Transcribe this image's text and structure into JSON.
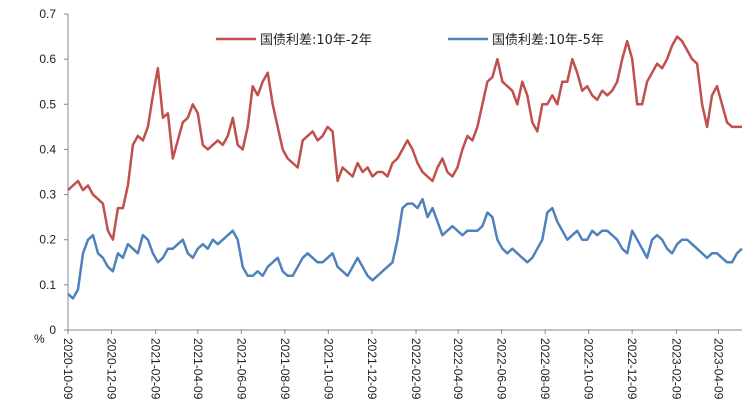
{
  "chart_data": {
    "type": "line",
    "title": "",
    "xlabel": "",
    "ylabel": "%",
    "ylim": [
      0,
      0.7
    ],
    "y_ticks": [
      "0",
      "0.1",
      "0.2",
      "0.3",
      "0.4",
      "0.5",
      "0.6",
      "0.7"
    ],
    "x_ticks": [
      "2020-10-09",
      "2020-12-09",
      "2021-02-09",
      "2021-04-09",
      "2021-06-09",
      "2021-08-09",
      "2021-10-09",
      "2021-12-09",
      "2022-02-09",
      "2022-04-09",
      "2022-06-09",
      "2022-08-09",
      "2022-10-09",
      "2022-12-09",
      "2023-02-09",
      "2023-04-09"
    ],
    "grid": false,
    "legend_position": "top-center",
    "series": [
      {
        "name": "国债利差:10年-2年",
        "color": "#C0504D",
        "x": [
          "2020-10-09",
          "2020-10-16",
          "2020-10-23",
          "2020-10-30",
          "2020-11-06",
          "2020-11-13",
          "2020-11-20",
          "2020-11-27",
          "2020-12-04",
          "2020-12-11",
          "2020-12-18",
          "2020-12-25",
          "2021-01-01",
          "2021-01-08",
          "2021-01-15",
          "2021-01-22",
          "2021-01-29",
          "2021-02-05",
          "2021-02-12",
          "2021-02-19",
          "2021-02-26",
          "2021-03-05",
          "2021-03-12",
          "2021-03-19",
          "2021-03-26",
          "2021-04-02",
          "2021-04-09",
          "2021-04-16",
          "2021-04-23",
          "2021-04-30",
          "2021-05-07",
          "2021-05-14",
          "2021-05-21",
          "2021-05-28",
          "2021-06-04",
          "2021-06-11",
          "2021-06-18",
          "2021-06-25",
          "2021-07-02",
          "2021-07-09",
          "2021-07-16",
          "2021-07-23",
          "2021-07-30",
          "2021-08-06",
          "2021-08-13",
          "2021-08-20",
          "2021-08-27",
          "2021-09-03",
          "2021-09-10",
          "2021-09-17",
          "2021-09-24",
          "2021-10-01",
          "2021-10-08",
          "2021-10-15",
          "2021-10-22",
          "2021-10-29",
          "2021-11-05",
          "2021-11-12",
          "2021-11-19",
          "2021-11-26",
          "2021-12-03",
          "2021-12-10",
          "2021-12-17",
          "2021-12-24",
          "2021-12-31",
          "2022-01-07",
          "2022-01-14",
          "2022-01-21",
          "2022-01-28",
          "2022-02-04",
          "2022-02-11",
          "2022-02-18",
          "2022-02-25",
          "2022-03-04",
          "2022-03-11",
          "2022-03-18",
          "2022-03-25",
          "2022-04-01",
          "2022-04-08",
          "2022-04-15",
          "2022-04-22",
          "2022-04-29",
          "2022-05-06",
          "2022-05-13",
          "2022-05-20",
          "2022-05-27",
          "2022-06-03",
          "2022-06-10",
          "2022-06-17",
          "2022-06-24",
          "2022-07-01",
          "2022-07-08",
          "2022-07-15",
          "2022-07-22",
          "2022-07-29",
          "2022-08-05",
          "2022-08-12",
          "2022-08-19",
          "2022-08-26",
          "2022-09-02",
          "2022-09-09",
          "2022-09-16",
          "2022-09-23",
          "2022-09-30",
          "2022-10-07",
          "2022-10-14",
          "2022-10-21",
          "2022-10-28",
          "2022-11-04",
          "2022-11-11",
          "2022-11-18",
          "2022-11-25",
          "2022-12-02",
          "2022-12-09",
          "2022-12-16",
          "2022-12-23",
          "2022-12-30",
          "2023-01-06",
          "2023-01-13",
          "2023-01-20",
          "2023-01-27",
          "2023-02-03",
          "2023-02-10",
          "2023-02-17",
          "2023-02-24",
          "2023-03-03",
          "2023-03-10",
          "2023-03-17",
          "2023-03-24",
          "2023-03-31",
          "2023-04-07",
          "2023-04-14",
          "2023-04-21",
          "2023-04-28",
          "2023-05-05",
          "2023-05-12"
        ],
        "values": [
          0.31,
          0.32,
          0.33,
          0.31,
          0.32,
          0.3,
          0.29,
          0.28,
          0.22,
          0.2,
          0.27,
          0.27,
          0.32,
          0.41,
          0.43,
          0.42,
          0.45,
          0.52,
          0.58,
          0.47,
          0.48,
          0.38,
          0.42,
          0.46,
          0.47,
          0.5,
          0.48,
          0.41,
          0.4,
          0.41,
          0.42,
          0.41,
          0.43,
          0.47,
          0.41,
          0.4,
          0.45,
          0.54,
          0.52,
          0.55,
          0.57,
          0.5,
          0.45,
          0.4,
          0.38,
          0.37,
          0.36,
          0.42,
          0.43,
          0.44,
          0.42,
          0.43,
          0.45,
          0.44,
          0.33,
          0.36,
          0.35,
          0.34,
          0.37,
          0.35,
          0.36,
          0.34,
          0.35,
          0.35,
          0.34,
          0.37,
          0.38,
          0.4,
          0.42,
          0.4,
          0.37,
          0.35,
          0.34,
          0.33,
          0.36,
          0.38,
          0.35,
          0.34,
          0.36,
          0.4,
          0.43,
          0.42,
          0.45,
          0.5,
          0.55,
          0.56,
          0.6,
          0.55,
          0.54,
          0.53,
          0.5,
          0.55,
          0.52,
          0.46,
          0.44,
          0.5,
          0.5,
          0.52,
          0.5,
          0.55,
          0.55,
          0.6,
          0.57,
          0.53,
          0.54,
          0.52,
          0.51,
          0.53,
          0.52,
          0.53,
          0.55,
          0.6,
          0.64,
          0.6,
          0.5,
          0.5,
          0.55,
          0.57,
          0.59,
          0.58,
          0.6,
          0.63,
          0.65,
          0.64,
          0.62,
          0.6,
          0.59,
          0.5,
          0.45,
          0.52,
          0.54,
          0.5,
          0.46,
          0.45,
          0.45,
          0.45
        ],
        "note": ""
      },
      {
        "name": "国债利差:10年-5年",
        "color": "#4F81BD",
        "x": [
          "2020-10-09",
          "2020-10-16",
          "2020-10-23",
          "2020-10-30",
          "2020-11-06",
          "2020-11-13",
          "2020-11-20",
          "2020-11-27",
          "2020-12-04",
          "2020-12-11",
          "2020-12-18",
          "2020-12-25",
          "2021-01-01",
          "2021-01-08",
          "2021-01-15",
          "2021-01-22",
          "2021-01-29",
          "2021-02-05",
          "2021-02-12",
          "2021-02-19",
          "2021-02-26",
          "2021-03-05",
          "2021-03-12",
          "2021-03-19",
          "2021-03-26",
          "2021-04-02",
          "2021-04-09",
          "2021-04-16",
          "2021-04-23",
          "2021-04-30",
          "2021-05-07",
          "2021-05-14",
          "2021-05-21",
          "2021-05-28",
          "2021-06-04",
          "2021-06-11",
          "2021-06-18",
          "2021-06-25",
          "2021-07-02",
          "2021-07-09",
          "2021-07-16",
          "2021-07-23",
          "2021-07-30",
          "2021-08-06",
          "2021-08-13",
          "2021-08-20",
          "2021-08-27",
          "2021-09-03",
          "2021-09-10",
          "2021-09-17",
          "2021-09-24",
          "2021-10-01",
          "2021-10-08",
          "2021-10-15",
          "2021-10-22",
          "2021-10-29",
          "2021-11-05",
          "2021-11-12",
          "2021-11-19",
          "2021-11-26",
          "2021-12-03",
          "2021-12-10",
          "2021-12-17",
          "2021-12-24",
          "2021-12-31",
          "2022-01-07",
          "2022-01-14",
          "2022-01-21",
          "2022-01-28",
          "2022-02-04",
          "2022-02-11",
          "2022-02-18",
          "2022-02-25",
          "2022-03-04",
          "2022-03-11",
          "2022-03-18",
          "2022-03-25",
          "2022-04-01",
          "2022-04-08",
          "2022-04-15",
          "2022-04-22",
          "2022-04-29",
          "2022-05-06",
          "2022-05-13",
          "2022-05-20",
          "2022-05-27",
          "2022-06-03",
          "2022-06-10",
          "2022-06-17",
          "2022-06-24",
          "2022-07-01",
          "2022-07-08",
          "2022-07-15",
          "2022-07-22",
          "2022-07-29",
          "2022-08-05",
          "2022-08-12",
          "2022-08-19",
          "2022-08-26",
          "2022-09-02",
          "2022-09-09",
          "2022-09-16",
          "2022-09-23",
          "2022-09-30",
          "2022-10-07",
          "2022-10-14",
          "2022-10-21",
          "2022-10-28",
          "2022-11-04",
          "2022-11-11",
          "2022-11-18",
          "2022-11-25",
          "2022-12-02",
          "2022-12-09",
          "2022-12-16",
          "2022-12-23",
          "2022-12-30",
          "2023-01-06",
          "2023-01-13",
          "2023-01-20",
          "2023-01-27",
          "2023-02-03",
          "2023-02-10",
          "2023-02-17",
          "2023-02-24",
          "2023-03-03",
          "2023-03-10",
          "2023-03-17",
          "2023-03-24",
          "2023-03-31",
          "2023-04-07",
          "2023-04-14",
          "2023-04-21",
          "2023-04-28",
          "2023-05-05",
          "2023-05-12"
        ],
        "values": [
          0.08,
          0.07,
          0.09,
          0.17,
          0.2,
          0.21,
          0.17,
          0.16,
          0.14,
          0.13,
          0.17,
          0.16,
          0.19,
          0.18,
          0.17,
          0.21,
          0.2,
          0.17,
          0.15,
          0.16,
          0.18,
          0.18,
          0.19,
          0.2,
          0.17,
          0.16,
          0.18,
          0.19,
          0.18,
          0.2,
          0.19,
          0.2,
          0.21,
          0.22,
          0.2,
          0.14,
          0.12,
          0.12,
          0.13,
          0.12,
          0.14,
          0.15,
          0.16,
          0.13,
          0.12,
          0.12,
          0.14,
          0.16,
          0.17,
          0.16,
          0.15,
          0.15,
          0.16,
          0.17,
          0.14,
          0.13,
          0.12,
          0.14,
          0.16,
          0.14,
          0.12,
          0.11,
          0.12,
          0.13,
          0.14,
          0.15,
          0.2,
          0.27,
          0.28,
          0.28,
          0.27,
          0.29,
          0.25,
          0.27,
          0.24,
          0.21,
          0.22,
          0.23,
          0.22,
          0.21,
          0.22,
          0.22,
          0.22,
          0.23,
          0.26,
          0.25,
          0.2,
          0.18,
          0.17,
          0.18,
          0.17,
          0.16,
          0.15,
          0.16,
          0.18,
          0.2,
          0.26,
          0.27,
          0.24,
          0.22,
          0.2,
          0.21,
          0.22,
          0.2,
          0.2,
          0.22,
          0.21,
          0.22,
          0.22,
          0.21,
          0.2,
          0.18,
          0.17,
          0.22,
          0.2,
          0.18,
          0.16,
          0.2,
          0.21,
          0.2,
          0.18,
          0.17,
          0.19,
          0.2,
          0.2,
          0.19,
          0.18,
          0.17,
          0.16,
          0.17,
          0.17,
          0.16,
          0.15,
          0.15,
          0.17,
          0.18
        ],
        "note": ""
      }
    ]
  }
}
